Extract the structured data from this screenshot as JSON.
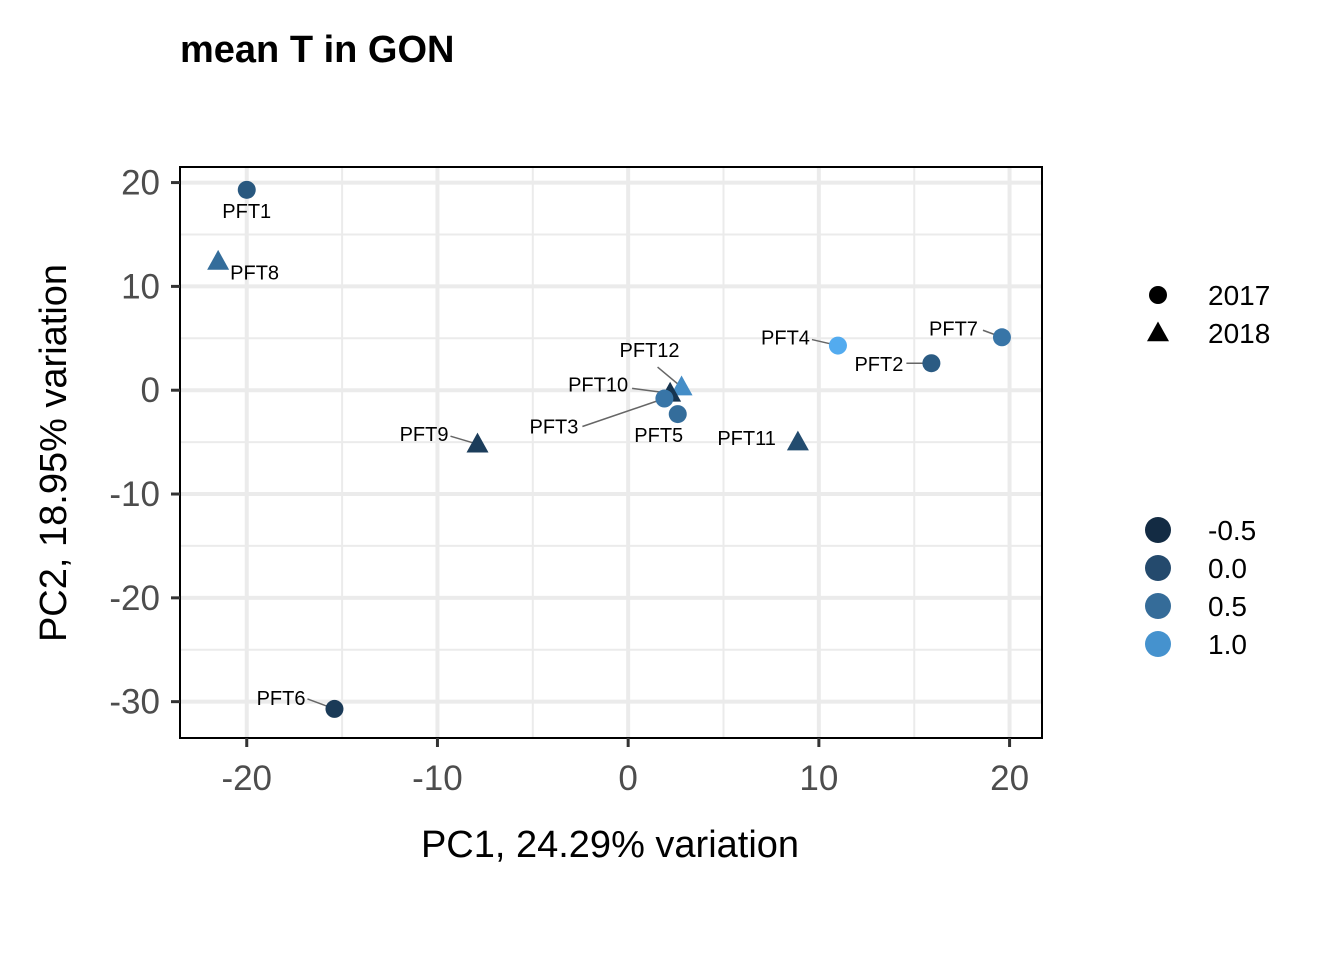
{
  "chart_data": {
    "type": "scatter",
    "title": "mean T in GON",
    "xlabel": "PC1, 24.29% variation",
    "ylabel": "PC2, 18.95% variation",
    "xlim": [
      -23.5,
      21.7
    ],
    "ylim": [
      -33.5,
      21.5
    ],
    "x_ticks": [
      -20,
      -10,
      0,
      10,
      20
    ],
    "x_tick_labels": [
      "-20",
      "-10",
      "0",
      "10",
      "20"
    ],
    "y_ticks": [
      20,
      10,
      0,
      -10,
      -20,
      -30
    ],
    "y_tick_labels": [
      "20",
      "10",
      "0",
      "-10",
      "-20",
      "-30"
    ],
    "grid": true,
    "legend_position": "right",
    "shape_legend": {
      "entries": [
        {
          "label": "2017",
          "shape": "circle"
        },
        {
          "label": "2018",
          "shape": "triangle"
        }
      ]
    },
    "color_legend": {
      "entries": [
        {
          "label": "-0.5",
          "value": -0.5,
          "color": "#132b43"
        },
        {
          "label": "0.0",
          "value": 0.0,
          "color": "#244a6d"
        },
        {
          "label": "0.5",
          "value": 0.5,
          "color": "#356c99"
        },
        {
          "label": "1.0",
          "value": 1.0,
          "color": "#4592ce"
        }
      ],
      "low_color": "#132b43",
      "high_color": "#56b1f7"
    },
    "points": [
      {
        "label": "PFT1",
        "x": -20.0,
        "y": 19.3,
        "year": "2017",
        "value": 0.0
      },
      {
        "label": "PFT8",
        "x": -21.5,
        "y": 12.4,
        "year": "2018",
        "value": 0.35
      },
      {
        "label": "PFT6",
        "x": -15.4,
        "y": -30.7,
        "year": "2017",
        "value": -0.5
      },
      {
        "label": "PFT9",
        "x": -7.9,
        "y": -5.2,
        "year": "2018",
        "value": -0.45
      },
      {
        "label": "PFT12",
        "x": 2.8,
        "y": 0.3,
        "year": "2018",
        "value": 0.9
      },
      {
        "label": "PFT10",
        "x": 2.2,
        "y": -0.3,
        "year": "2018",
        "value": -0.6
      },
      {
        "label": "PFT3",
        "x": 1.9,
        "y": -0.8,
        "year": "2017",
        "value": 0.5
      },
      {
        "label": "PFT5",
        "x": 2.6,
        "y": -2.3,
        "year": "2017",
        "value": 0.35
      },
      {
        "label": "PFT11",
        "x": 8.9,
        "y": -5.0,
        "year": "2018",
        "value": -0.2
      },
      {
        "label": "PFT4",
        "x": 11.0,
        "y": 4.3,
        "year": "2017",
        "value": 1.4
      },
      {
        "label": "PFT2",
        "x": 15.9,
        "y": 2.6,
        "year": "2017",
        "value": 0.05
      },
      {
        "label": "PFT7",
        "x": 19.6,
        "y": 5.1,
        "year": "2017",
        "value": 0.5
      }
    ]
  }
}
